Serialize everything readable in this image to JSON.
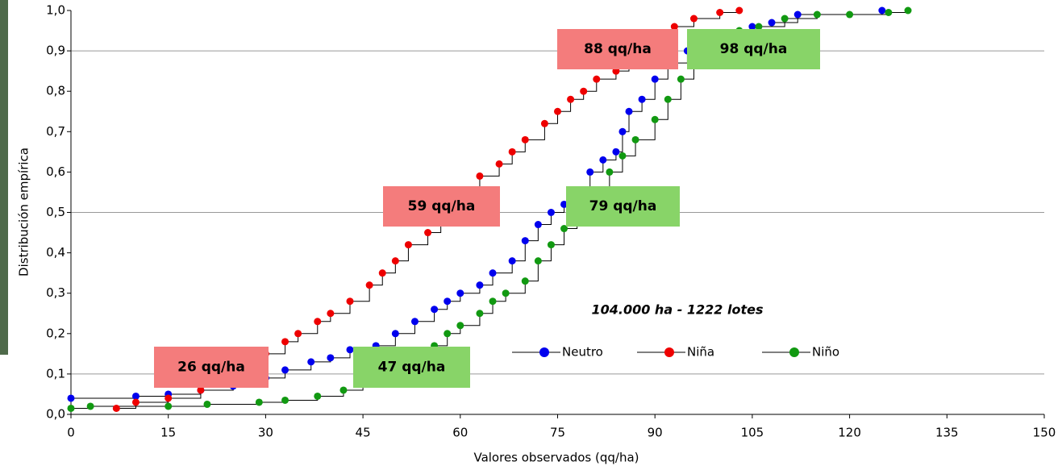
{
  "chart_data": {
    "type": "ecdf",
    "x_label": "Valores observados (qq/ha)",
    "y_label": "Distribución empírica",
    "note": "104.000 ha - 1222 lotes",
    "xlim": [
      0,
      150
    ],
    "xticks": [
      0,
      15,
      30,
      45,
      60,
      75,
      90,
      105,
      120,
      135,
      150
    ],
    "ylim": [
      0,
      1
    ],
    "yticks": [
      {
        "value": 0,
        "label": "0,0"
      },
      {
        "value": 0.1,
        "label": "0,1"
      },
      {
        "value": 0.2,
        "label": "0,2"
      },
      {
        "value": 0.3,
        "label": "0,3"
      },
      {
        "value": 0.4,
        "label": "0,4"
      },
      {
        "value": 0.5,
        "label": "0,5"
      },
      {
        "value": 0.6,
        "label": "0,6"
      },
      {
        "value": 0.7,
        "label": "0,7"
      },
      {
        "value": 0.8,
        "label": "0,8"
      },
      {
        "value": 0.9,
        "label": "0,9"
      },
      {
        "value": 1,
        "label": "1,0"
      }
    ],
    "reference_lines": [
      0.1,
      0.5,
      0.9
    ],
    "series": [
      {
        "name": "Neutro",
        "color": "#0000ee",
        "x": [
          0,
          10,
          15,
          20,
          25,
          30,
          33,
          37,
          40,
          43,
          47,
          50,
          53,
          56,
          58,
          60,
          63,
          65,
          68,
          70,
          72,
          74,
          76,
          78,
          80,
          82,
          84,
          85,
          86,
          88,
          90,
          92,
          95,
          100,
          105,
          108,
          112,
          125
        ],
        "values": [
          0.04,
          0.045,
          0.05,
          0.06,
          0.07,
          0.09,
          0.11,
          0.13,
          0.14,
          0.16,
          0.17,
          0.2,
          0.23,
          0.26,
          0.28,
          0.3,
          0.32,
          0.35,
          0.38,
          0.43,
          0.47,
          0.5,
          0.52,
          0.55,
          0.6,
          0.63,
          0.65,
          0.7,
          0.75,
          0.78,
          0.83,
          0.87,
          0.9,
          0.93,
          0.96,
          0.97,
          0.99,
          1.0
        ]
      },
      {
        "name": "Niña",
        "color": "#ee0000",
        "x": [
          7,
          10,
          15,
          20,
          25,
          28,
          30,
          33,
          35,
          38,
          40,
          43,
          46,
          48,
          50,
          52,
          55,
          57,
          59,
          61,
          63,
          66,
          68,
          70,
          73,
          75,
          77,
          79,
          81,
          84,
          86,
          88,
          90,
          93,
          96,
          100,
          103
        ],
        "values": [
          0.015,
          0.03,
          0.04,
          0.06,
          0.09,
          0.12,
          0.15,
          0.18,
          0.2,
          0.23,
          0.25,
          0.28,
          0.32,
          0.35,
          0.38,
          0.42,
          0.45,
          0.48,
          0.5,
          0.55,
          0.59,
          0.62,
          0.65,
          0.68,
          0.72,
          0.75,
          0.78,
          0.8,
          0.83,
          0.85,
          0.88,
          0.9,
          0.93,
          0.96,
          0.98,
          0.995,
          1.0
        ]
      },
      {
        "name": "Niño",
        "color": "#119911",
        "x": [
          0,
          3,
          15,
          21,
          29,
          33,
          38,
          42,
          45,
          48,
          50,
          53,
          56,
          58,
          60,
          63,
          65,
          67,
          70,
          72,
          74,
          76,
          78,
          80,
          83,
          85,
          87,
          90,
          92,
          94,
          96,
          98,
          100,
          103,
          106,
          110,
          115,
          120,
          126,
          129
        ],
        "values": [
          0.015,
          0.02,
          0.02,
          0.025,
          0.03,
          0.035,
          0.045,
          0.06,
          0.08,
          0.11,
          0.12,
          0.15,
          0.17,
          0.2,
          0.22,
          0.25,
          0.28,
          0.3,
          0.33,
          0.38,
          0.42,
          0.46,
          0.5,
          0.55,
          0.6,
          0.64,
          0.68,
          0.73,
          0.78,
          0.83,
          0.88,
          0.91,
          0.93,
          0.95,
          0.96,
          0.98,
          0.99,
          0.99,
          0.995,
          1.0
        ]
      }
    ],
    "annotations": [
      {
        "text": "26 qq/ha",
        "color": "#f47c7c"
      },
      {
        "text": "47 qq/ha",
        "color": "#88d468"
      },
      {
        "text": "59 qq/ha",
        "color": "#f47c7c"
      },
      {
        "text": "79 qq/ha",
        "color": "#88d468"
      },
      {
        "text": "88 qq/ha",
        "color": "#f47c7c"
      },
      {
        "text": "98 qq/ha",
        "color": "#88d468"
      }
    ]
  }
}
